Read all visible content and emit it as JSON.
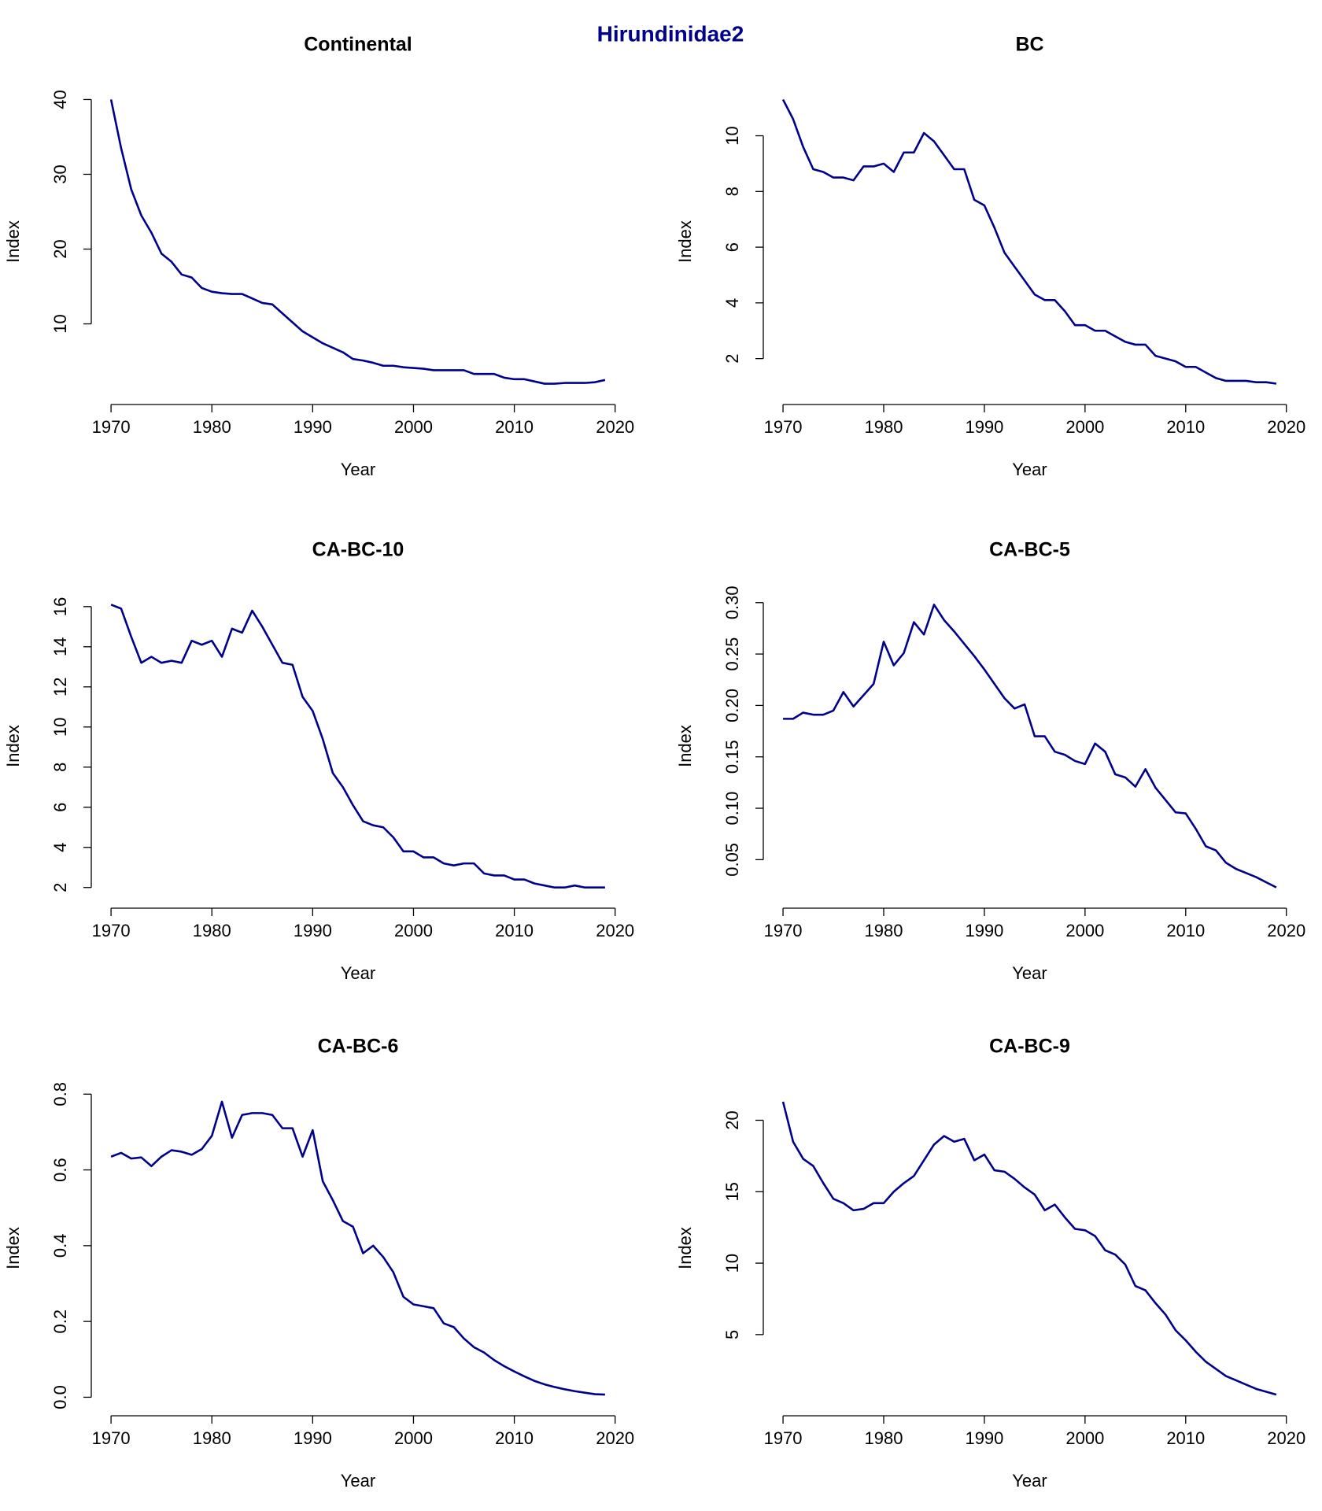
{
  "title": "Hirundinidae2",
  "chart_data": [
    {
      "type": "line",
      "title": "Continental",
      "xlabel": "Year",
      "ylabel": "Index",
      "x": [
        1970,
        1971,
        1972,
        1973,
        1974,
        1975,
        1976,
        1977,
        1978,
        1979,
        1980,
        1981,
        1982,
        1983,
        1984,
        1985,
        1986,
        1987,
        1988,
        1989,
        1990,
        1991,
        1992,
        1993,
        1994,
        1995,
        1996,
        1997,
        1998,
        1999,
        2000,
        2001,
        2002,
        2003,
        2004,
        2005,
        2006,
        2007,
        2008,
        2009,
        2010,
        2011,
        2012,
        2013,
        2014,
        2015,
        2016,
        2017,
        2018,
        2019
      ],
      "series": [
        {
          "color": "#00008b",
          "values": [
            40,
            33.5,
            28,
            24.5,
            22.2,
            19.4,
            18.3,
            16.6,
            16.2,
            14.8,
            14.3,
            14.1,
            14.0,
            14.0,
            13.4,
            12.8,
            12.6,
            11.4,
            10.2,
            9.0,
            8.2,
            7.4,
            6.8,
            6.2,
            5.3,
            5.1,
            4.8,
            4.4,
            4.4,
            4.2,
            4.1,
            4.0,
            3.8,
            3.8,
            3.8,
            3.8,
            3.3,
            3.3,
            3.3,
            2.8,
            2.6,
            2.6,
            2.3,
            2.0,
            2.0,
            2.1,
            2.1,
            2.1,
            2.2,
            2.5
          ]
        }
      ],
      "xlim": [
        1968.04,
        2020.96
      ],
      "xticks": [
        1970,
        1980,
        1990,
        2000,
        2010,
        2020
      ],
      "ylim": [
        0.48,
        41.52
      ],
      "yticks": [
        10,
        20,
        30,
        40
      ]
    },
    {
      "type": "line",
      "title": "BC",
      "xlabel": "Year",
      "ylabel": "Index",
      "x": [
        1970,
        1971,
        1972,
        1973,
        1974,
        1975,
        1976,
        1977,
        1978,
        1979,
        1980,
        1981,
        1982,
        1983,
        1984,
        1985,
        1986,
        1987,
        1988,
        1989,
        1990,
        1991,
        1992,
        1993,
        1994,
        1995,
        1996,
        1997,
        1998,
        1999,
        2000,
        2001,
        2002,
        2003,
        2004,
        2005,
        2006,
        2007,
        2008,
        2009,
        2010,
        2011,
        2012,
        2013,
        2014,
        2015,
        2016,
        2017,
        2018,
        2019
      ],
      "series": [
        {
          "color": "#00008b",
          "values": [
            11.3,
            10.6,
            9.6,
            8.8,
            8.7,
            8.5,
            8.5,
            8.4,
            8.9,
            8.9,
            9.0,
            8.7,
            9.4,
            9.4,
            10.1,
            9.8,
            9.3,
            8.8,
            8.8,
            7.7,
            7.5,
            6.7,
            5.8,
            5.3,
            4.8,
            4.3,
            4.1,
            4.1,
            3.7,
            3.2,
            3.2,
            3.0,
            3.0,
            2.8,
            2.6,
            2.5,
            2.5,
            2.1,
            2.0,
            1.9,
            1.7,
            1.7,
            1.5,
            1.3,
            1.2,
            1.2,
            1.2,
            1.15,
            1.15,
            1.1
          ]
        }
      ],
      "xlim": [
        1968.04,
        2020.96
      ],
      "xticks": [
        1970,
        1980,
        1990,
        2000,
        2010,
        2020
      ],
      "ylim": [
        0.69,
        11.71
      ],
      "yticks": [
        2,
        4,
        6,
        8,
        10
      ]
    },
    {
      "type": "line",
      "title": "CA-BC-10",
      "xlabel": "Year",
      "ylabel": "Index",
      "x": [
        1970,
        1971,
        1972,
        1973,
        1974,
        1975,
        1976,
        1977,
        1978,
        1979,
        1980,
        1981,
        1982,
        1983,
        1984,
        1985,
        1986,
        1987,
        1988,
        1989,
        1990,
        1991,
        1992,
        1993,
        1994,
        1995,
        1996,
        1997,
        1998,
        1999,
        2000,
        2001,
        2002,
        2003,
        2004,
        2005,
        2006,
        2007,
        2008,
        2009,
        2010,
        2011,
        2012,
        2013,
        2014,
        2015,
        2016,
        2017,
        2018,
        2019
      ],
      "series": [
        {
          "color": "#00008b",
          "values": [
            16.1,
            15.9,
            14.5,
            13.2,
            13.5,
            13.2,
            13.3,
            13.2,
            14.3,
            14.1,
            14.3,
            13.5,
            14.9,
            14.7,
            15.8,
            15.0,
            14.1,
            13.2,
            13.1,
            11.5,
            10.8,
            9.4,
            7.7,
            7.0,
            6.1,
            5.3,
            5.1,
            5.0,
            4.5,
            3.8,
            3.8,
            3.5,
            3.5,
            3.2,
            3.1,
            3.2,
            3.2,
            2.7,
            2.6,
            2.6,
            2.4,
            2.4,
            2.2,
            2.1,
            2.0,
            2.0,
            2.1,
            2.0,
            2.0,
            2.0
          ]
        }
      ],
      "xlim": [
        1968.04,
        2020.96
      ],
      "xticks": [
        1970,
        1980,
        1990,
        2000,
        2010,
        2020
      ],
      "ylim": [
        1.44,
        16.66
      ],
      "yticks": [
        2,
        4,
        6,
        8,
        10,
        12,
        14,
        16
      ]
    },
    {
      "type": "line",
      "title": "CA-BC-5",
      "xlabel": "Year",
      "ylabel": "Index",
      "x": [
        1970,
        1971,
        1972,
        1973,
        1974,
        1975,
        1976,
        1977,
        1978,
        1979,
        1980,
        1981,
        1982,
        1983,
        1984,
        1985,
        1986,
        1987,
        1988,
        1989,
        1990,
        1991,
        1992,
        1993,
        1994,
        1995,
        1996,
        1997,
        1998,
        1999,
        2000,
        2001,
        2002,
        2003,
        2004,
        2005,
        2006,
        2007,
        2008,
        2009,
        2010,
        2011,
        2012,
        2013,
        2014,
        2015,
        2016,
        2017,
        2018,
        2019
      ],
      "series": [
        {
          "color": "#00008b",
          "values": [
            0.187,
            0.187,
            0.193,
            0.191,
            0.191,
            0.195,
            0.213,
            0.199,
            0.21,
            0.221,
            0.262,
            0.239,
            0.251,
            0.281,
            0.269,
            0.298,
            0.283,
            0.272,
            0.26,
            0.248,
            0.235,
            0.221,
            0.207,
            0.197,
            0.201,
            0.17,
            0.17,
            0.155,
            0.152,
            0.146,
            0.143,
            0.163,
            0.155,
            0.133,
            0.13,
            0.121,
            0.138,
            0.12,
            0.108,
            0.096,
            0.095,
            0.08,
            0.063,
            0.059,
            0.047,
            0.041,
            0.037,
            0.033,
            0.028,
            0.023
          ]
        }
      ],
      "xlim": [
        1968.04,
        2020.96
      ],
      "xticks": [
        1970,
        1980,
        1990,
        2000,
        2010,
        2020
      ],
      "ylim": [
        0.012,
        0.309
      ],
      "yticks": [
        0.05,
        {
          "value": 0.1,
          "label": "0.10"
        },
        0.15,
        {
          "value": 0.2,
          "label": "0.20"
        },
        0.25,
        {
          "value": 0.3,
          "label": "0.30"
        }
      ]
    },
    {
      "type": "line",
      "title": "CA-BC-6",
      "xlabel": "Year",
      "ylabel": "Index",
      "x": [
        1970,
        1971,
        1972,
        1973,
        1974,
        1975,
        1976,
        1977,
        1978,
        1979,
        1980,
        1981,
        1982,
        1983,
        1984,
        1985,
        1986,
        1987,
        1988,
        1989,
        1990,
        1991,
        1992,
        1993,
        1994,
        1995,
        1996,
        1997,
        1998,
        1999,
        2000,
        2001,
        2002,
        2003,
        2004,
        2005,
        2006,
        2007,
        2008,
        2009,
        2010,
        2011,
        2012,
        2013,
        2014,
        2015,
        2016,
        2017,
        2018,
        2019
      ],
      "series": [
        {
          "color": "#00008b",
          "values": [
            0.635,
            0.645,
            0.63,
            0.633,
            0.61,
            0.635,
            0.652,
            0.648,
            0.64,
            0.655,
            0.69,
            0.78,
            0.685,
            0.745,
            0.75,
            0.75,
            0.745,
            0.71,
            0.71,
            0.635,
            0.705,
            0.57,
            0.52,
            0.465,
            0.45,
            0.38,
            0.4,
            0.37,
            0.33,
            0.265,
            0.245,
            0.24,
            0.235,
            0.195,
            0.185,
            0.155,
            0.132,
            0.118,
            0.098,
            0.082,
            0.068,
            0.055,
            0.043,
            0.034,
            0.027,
            0.021,
            0.016,
            0.012,
            0.008,
            0.007
          ]
        }
      ],
      "xlim": [
        1968.04,
        2020.96
      ],
      "xticks": [
        1970,
        1980,
        1990,
        2000,
        2010,
        2020
      ],
      "ylim": [
        -0.024,
        0.811
      ],
      "yticks": [
        {
          "value": 0,
          "label": "0.0"
        },
        0.2,
        0.4,
        0.6,
        0.8
      ]
    },
    {
      "type": "line",
      "title": "CA-BC-9",
      "xlabel": "Year",
      "ylabel": "Index",
      "x": [
        1970,
        1971,
        1972,
        1973,
        1974,
        1975,
        1976,
        1977,
        1978,
        1979,
        1980,
        1981,
        1982,
        1983,
        1984,
        1985,
        1986,
        1987,
        1988,
        1989,
        1990,
        1991,
        1992,
        1993,
        1994,
        1995,
        1996,
        1997,
        1998,
        1999,
        2000,
        2001,
        2002,
        2003,
        2004,
        2005,
        2006,
        2007,
        2008,
        2009,
        2010,
        2011,
        2012,
        2013,
        2014,
        2015,
        2016,
        2017,
        2018,
        2019
      ],
      "series": [
        {
          "color": "#00008b",
          "values": [
            21.3,
            18.5,
            17.3,
            16.8,
            15.6,
            14.5,
            14.2,
            13.7,
            13.8,
            14.2,
            14.2,
            15.0,
            15.6,
            16.1,
            17.2,
            18.3,
            18.9,
            18.5,
            18.7,
            17.2,
            17.6,
            16.5,
            16.4,
            15.9,
            15.3,
            14.8,
            13.7,
            14.1,
            13.2,
            12.4,
            12.3,
            11.9,
            10.9,
            10.6,
            9.9,
            8.4,
            8.1,
            7.2,
            6.4,
            5.3,
            4.6,
            3.8,
            3.1,
            2.6,
            2.1,
            1.8,
            1.5,
            1.2,
            1.0,
            0.8
          ]
        }
      ],
      "xlim": [
        1968.04,
        2020.96
      ],
      "xticks": [
        1970,
        1980,
        1990,
        2000,
        2010,
        2020
      ],
      "ylim": [
        -0.02,
        22.12
      ],
      "yticks": [
        5,
        10,
        15,
        20
      ]
    }
  ]
}
